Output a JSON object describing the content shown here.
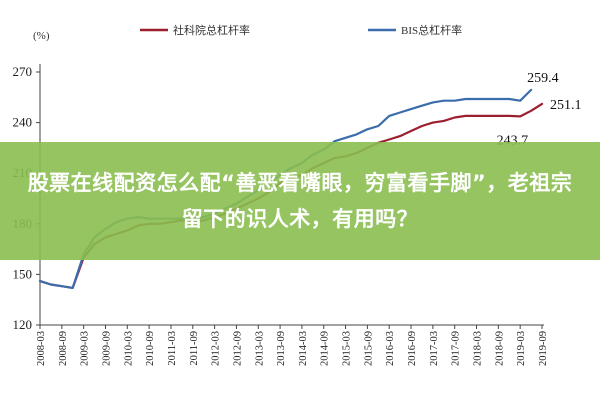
{
  "overlay": {
    "headline": "股票在线配资怎么配“善恶看嘴眼，穷富看手脚”，老祖宗留下的识人术，有用吗？"
  },
  "chart_data": {
    "type": "line",
    "unit_label": "(%)",
    "x": [
      "2008-03",
      "2008-09",
      "2009-03",
      "2009-09",
      "2010-03",
      "2010-09",
      "2011-03",
      "2011-09",
      "2012-03",
      "2012-09",
      "2013-03",
      "2013-09",
      "2014-03",
      "2014-09",
      "2015-03",
      "2015-09",
      "2016-03",
      "2016-09",
      "2017-03",
      "2017-09",
      "2018-03",
      "2018-09",
      "2019-03",
      "2019-09"
    ],
    "ylim": [
      120,
      270
    ],
    "yticks": [
      120,
      150,
      180,
      210,
      240,
      270
    ],
    "series": [
      {
        "name": "社科院总杠杆率",
        "color": "#9c1f2e",
        "x": [
          "2008-03",
          "2008-06",
          "2008-09",
          "2008-12",
          "2009-03",
          "2009-06",
          "2009-09",
          "2009-12",
          "2010-03",
          "2010-06",
          "2010-09",
          "2010-12",
          "2011-03",
          "2011-06",
          "2011-09",
          "2011-12",
          "2012-03",
          "2012-06",
          "2012-09",
          "2012-12",
          "2013-03",
          "2013-06",
          "2013-09",
          "2013-12",
          "2014-03",
          "2014-06",
          "2014-09",
          "2014-12",
          "2015-03",
          "2015-06",
          "2015-09",
          "2015-12",
          "2016-03",
          "2016-06",
          "2016-09",
          "2016-12",
          "2017-03",
          "2017-06",
          "2017-09",
          "2017-12",
          "2018-03",
          "2018-06",
          "2018-09",
          "2018-12",
          "2019-03",
          "2019-06",
          "2019-09"
        ],
        "values": [
          146,
          144,
          143,
          142,
          160,
          168,
          172,
          174,
          176,
          179,
          180,
          180,
          181,
          182,
          181,
          182,
          184,
          186,
          189,
          192,
          195,
          199,
          204,
          207,
          209,
          213,
          216,
          219,
          220,
          222,
          225,
          228,
          230,
          232,
          235,
          238,
          240,
          241,
          243,
          244,
          244,
          244,
          244,
          244,
          243.7,
          247,
          251.1
        ]
      },
      {
        "name": "BIS总杠杆率",
        "color": "#3b6dac",
        "x": [
          "2008-03",
          "2008-06",
          "2008-09",
          "2008-12",
          "2009-03",
          "2009-06",
          "2009-09",
          "2009-12",
          "2010-03",
          "2010-06",
          "2010-09",
          "2010-12",
          "2011-03",
          "2011-06",
          "2011-09",
          "2011-12",
          "2012-03",
          "2012-06",
          "2012-09",
          "2012-12",
          "2013-03",
          "2013-06",
          "2013-09",
          "2013-12",
          "2014-03",
          "2014-06",
          "2014-09",
          "2014-12",
          "2015-03",
          "2015-06",
          "2015-09",
          "2015-12",
          "2016-03",
          "2016-06",
          "2016-09",
          "2016-12",
          "2017-03",
          "2017-06",
          "2017-09",
          "2017-12",
          "2018-03",
          "2018-06",
          "2018-09",
          "2018-12",
          "2019-03",
          "2019-06"
        ],
        "values": [
          146,
          144,
          143,
          142,
          162,
          172,
          177,
          181,
          183,
          184,
          183,
          183,
          183,
          183,
          183,
          184,
          186,
          189,
          192,
          196,
          200,
          205,
          209,
          213,
          216,
          221,
          224,
          229,
          231,
          233,
          236,
          238,
          244,
          246,
          248,
          250,
          252,
          253,
          253,
          254,
          254,
          254,
          254,
          254,
          253,
          259.4
        ]
      }
    ],
    "annotations": [
      {
        "text": "259.4",
        "x": "2019-06",
        "y": 259.4,
        "anchor": "above-right"
      },
      {
        "text": "251.1",
        "x": "2019-09",
        "y": 251.1,
        "anchor": "right"
      },
      {
        "text": "243.7",
        "x": "2019-03",
        "y": 243.7,
        "anchor": "below-left"
      }
    ],
    "legend_position": "top-center"
  }
}
